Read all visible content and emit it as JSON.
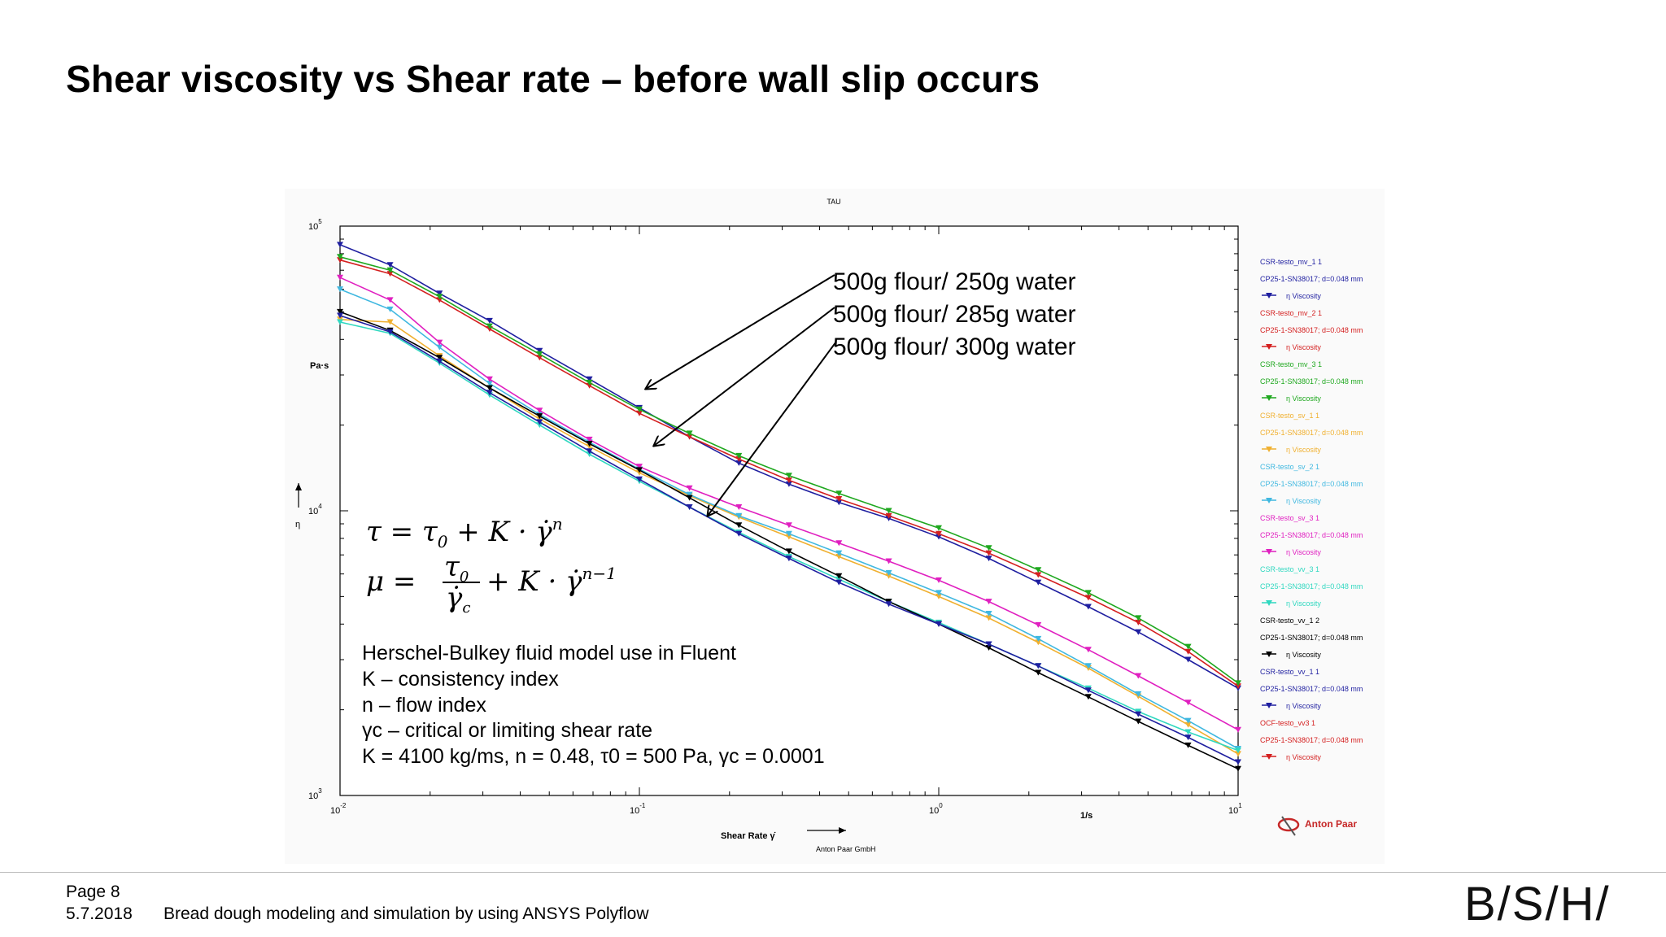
{
  "slide": {
    "title": "Shear viscosity vs Shear rate – before wall slip occurs",
    "page": "Page 8",
    "date": "5.7.2018",
    "subtitle": "Bread dough modeling and simulation by using ANSYS Polyflow",
    "logo": "B/S/H/"
  },
  "chart_data": {
    "type": "line",
    "title": "TAU",
    "xlabel": "Shear Rate γ̇",
    "ylabel": "η",
    "ylabel_unit": "Pa·s",
    "xunit": "1/s",
    "xscale": "log",
    "yscale": "log",
    "xlim": [
      0.01,
      10
    ],
    "ylim": [
      1000,
      100000
    ],
    "x_ticks": [
      {
        "base": "10",
        "exp": "-2"
      },
      {
        "base": "10",
        "exp": "-1"
      },
      {
        "base": "10",
        "exp": "0"
      },
      {
        "base": "10",
        "exp": "1"
      }
    ],
    "y_ticks": [
      {
        "base": "10",
        "exp": "3"
      },
      {
        "base": "10",
        "exp": "4"
      },
      {
        "base": "10",
        "exp": "5"
      }
    ],
    "grid": false,
    "legend_position": "right",
    "marker": "down-triangle",
    "x": [
      0.01,
      0.0147,
      0.0215,
      0.0316,
      0.0464,
      0.0681,
      0.1,
      0.147,
      0.215,
      0.316,
      0.464,
      0.681,
      1,
      1.47,
      2.15,
      3.16,
      4.64,
      6.81,
      10
    ],
    "series": [
      {
        "name": "CSR-testo_mv_1 1",
        "color": "#1f1fa0",
        "legend_label": "CSR-testo_mv_1 1",
        "legend_device": "CP25-1-SN38017; d=0.048 mm",
        "legend_var": "η   Viscosity",
        "values": [
          86000,
          73000,
          58000,
          46500,
          36500,
          29000,
          23000,
          18200,
          14700,
          12400,
          10700,
          9400,
          8100,
          6800,
          5600,
          4600,
          3750,
          3000,
          2380
        ]
      },
      {
        "name": "CSR-testo_mv_2 1",
        "color": "#d42020",
        "legend_label": "CSR-testo_mv_2 1",
        "legend_device": "CP25-1-SN38017; d=0.048 mm",
        "legend_var": "η   Viscosity",
        "values": [
          76000,
          68000,
          55000,
          43500,
          34500,
          27500,
          22000,
          18200,
          15200,
          12800,
          11000,
          9600,
          8300,
          7100,
          5950,
          4950,
          4050,
          3200,
          2420
        ]
      },
      {
        "name": "CSR-testo_mv_3 1",
        "color": "#1fa81f",
        "legend_label": "CSR-testo_mv_3 1",
        "legend_device": "CP25-1-SN38017; d=0.048 mm",
        "legend_var": "η   Viscosity",
        "values": [
          78000,
          70000,
          56500,
          44500,
          35500,
          28200,
          22700,
          18700,
          15600,
          13300,
          11500,
          10000,
          8700,
          7400,
          6200,
          5150,
          4200,
          3330,
          2480
        ]
      },
      {
        "name": "CSR-testo_sv_1 1",
        "color": "#f0b030",
        "legend_label": "CSR-testo_sv_1 1",
        "legend_device": "CP25-1-SN38017; d=0.048 mm",
        "legend_var": "η   Viscosity",
        "values": [
          47000,
          46000,
          35000,
          27000,
          21000,
          16800,
          13600,
          11300,
          9500,
          8100,
          6900,
          5900,
          5000,
          4200,
          3450,
          2800,
          2230,
          1770,
          1400
        ]
      },
      {
        "name": "CSR-testo_sv_2 1",
        "color": "#40b8e0",
        "legend_label": "CSR-testo_sv_2 1",
        "legend_device": "CP25-1-SN38017; d=0.048 mm",
        "legend_var": "η   Viscosity",
        "values": [
          60000,
          51000,
          37500,
          28000,
          21800,
          17400,
          14000,
          11400,
          9600,
          8300,
          7100,
          6050,
          5150,
          4350,
          3550,
          2850,
          2270,
          1830,
          1460
        ]
      },
      {
        "name": "CSR-testo_sv_3 1",
        "color": "#e020c0",
        "legend_label": "CSR-testo_sv_3 1",
        "legend_device": "CP25-1-SN38017; d=0.048 mm",
        "legend_var": "η   Viscosity",
        "values": [
          66000,
          55000,
          39000,
          29000,
          22500,
          17800,
          14300,
          12000,
          10300,
          8900,
          7700,
          6650,
          5700,
          4800,
          3970,
          3250,
          2630,
          2120,
          1700
        ]
      },
      {
        "name": "CSR-testo_vv_3 1",
        "color": "#30d8c0",
        "legend_label": "CSR-testo_vv_3 1",
        "legend_device": "CP25-1-SN38017; d=0.048 mm",
        "legend_var": "η   Viscosity",
        "values": [
          46000,
          42000,
          33000,
          25500,
          20000,
          15800,
          12700,
          10300,
          8400,
          6900,
          5750,
          4800,
          4050,
          3400,
          2850,
          2380,
          1970,
          1670,
          1440
        ]
      },
      {
        "name": "CSR-testo_vv_1 2",
        "color": "#000000",
        "legend_label": "CSR-testo_vv_1 2",
        "legend_device": "CP25-1-SN38017; d=0.048 mm",
        "legend_var": "η   Viscosity",
        "values": [
          50000,
          43000,
          34500,
          27000,
          21500,
          17200,
          13900,
          11100,
          8900,
          7200,
          5900,
          4800,
          4000,
          3300,
          2700,
          2220,
          1820,
          1500,
          1240
        ]
      },
      {
        "name": "CSR-testo_vv_1 1",
        "color": "#1f1fa0",
        "legend_label": "CSR-testo_vv_1 1",
        "legend_device": "CP25-1-SN38017; d=0.048 mm",
        "legend_var": "η   Viscosity",
        "values": [
          48500,
          42500,
          33500,
          26000,
          20500,
          16200,
          12900,
          10300,
          8300,
          6800,
          5600,
          4700,
          4000,
          3400,
          2850,
          2340,
          1930,
          1600,
          1310
        ]
      }
    ],
    "extra_legend": {
      "label": "OCF-testo_vv3 1",
      "device": "CP25-1-SN38017; d=0.048 mm",
      "var": "η   Viscosity",
      "color": "#d42020"
    },
    "annotations": {
      "water_250": "500g flour/ 250g water",
      "water_285": "500g flour/ 285g water",
      "water_300": "500g flour/ 300g water",
      "eq1_left": "τ = τ",
      "eq1_sub": "0",
      "eq1_right": " + K · γ̇",
      "eq1_sup": "n",
      "eq2_left": "μ = ",
      "eq2_num": "τ",
      "eq2_num_sub": "0",
      "eq2_den": "γ̇",
      "eq2_den_sub": "c",
      "eq2_right": "+ K · γ̇",
      "eq2_sup": "n−1",
      "note_1": "Herschel-Bulkey fluid model use in Fluent",
      "note_2": "K – consistency index",
      "note_3": "n – flow index",
      "note_4": "γc – critical or limiting shear rate",
      "note_5": "K = 4100 kg/ms, n = 0.48, τ0 = 500 Pa, γc = 0.0001",
      "brand": "Anton Paar",
      "brand_small": "Anton Paar GmbH"
    }
  }
}
